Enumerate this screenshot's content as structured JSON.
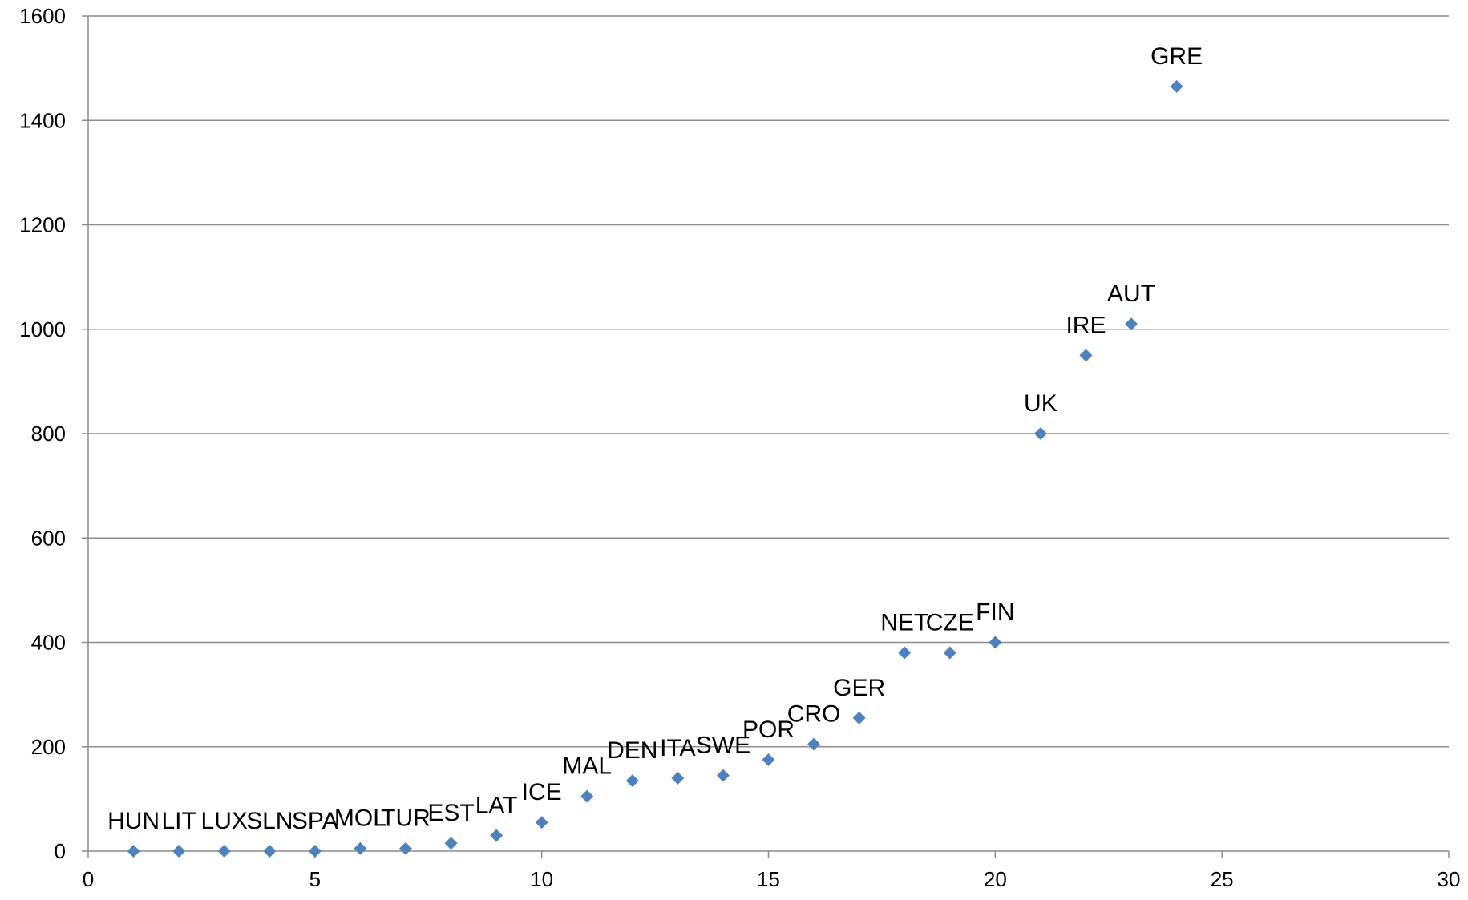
{
  "chart_data": {
    "type": "scatter",
    "title": "",
    "xlabel": "",
    "ylabel": "",
    "xlim": [
      0,
      30
    ],
    "ylim": [
      0,
      1600
    ],
    "x_ticks": [
      0,
      5,
      10,
      15,
      20,
      25,
      30
    ],
    "y_ticks": [
      0,
      200,
      400,
      600,
      800,
      1000,
      1200,
      1400,
      1600
    ],
    "grid": "horizontal",
    "legend": "none",
    "marker": "diamond",
    "marker_color": "#4f81bd",
    "points": [
      {
        "x": 1,
        "y": 0,
        "label": "HUN"
      },
      {
        "x": 2,
        "y": 0,
        "label": "LIT"
      },
      {
        "x": 3,
        "y": 0,
        "label": "LUX"
      },
      {
        "x": 4,
        "y": 0,
        "label": "SLN"
      },
      {
        "x": 5,
        "y": 0,
        "label": "SPA"
      },
      {
        "x": 6,
        "y": 5,
        "label": "MOL"
      },
      {
        "x": 7,
        "y": 5,
        "label": "TUR"
      },
      {
        "x": 8,
        "y": 15,
        "label": "EST"
      },
      {
        "x": 9,
        "y": 30,
        "label": "LAT"
      },
      {
        "x": 10,
        "y": 55,
        "label": "ICE"
      },
      {
        "x": 11,
        "y": 105,
        "label": "MAL"
      },
      {
        "x": 12,
        "y": 135,
        "label": "DEN"
      },
      {
        "x": 13,
        "y": 140,
        "label": "ITA"
      },
      {
        "x": 14,
        "y": 145,
        "label": "SWE"
      },
      {
        "x": 15,
        "y": 175,
        "label": "POR"
      },
      {
        "x": 16,
        "y": 205,
        "label": "CRO"
      },
      {
        "x": 17,
        "y": 255,
        "label": "GER"
      },
      {
        "x": 18,
        "y": 380,
        "label": "NET"
      },
      {
        "x": 19,
        "y": 380,
        "label": "CZE"
      },
      {
        "x": 20,
        "y": 400,
        "label": "FIN"
      },
      {
        "x": 21,
        "y": 800,
        "label": "UK"
      },
      {
        "x": 22,
        "y": 950,
        "label": "IRE"
      },
      {
        "x": 23,
        "y": 1010,
        "label": "AUT"
      },
      {
        "x": 24,
        "y": 1465,
        "label": "GRE"
      }
    ]
  }
}
